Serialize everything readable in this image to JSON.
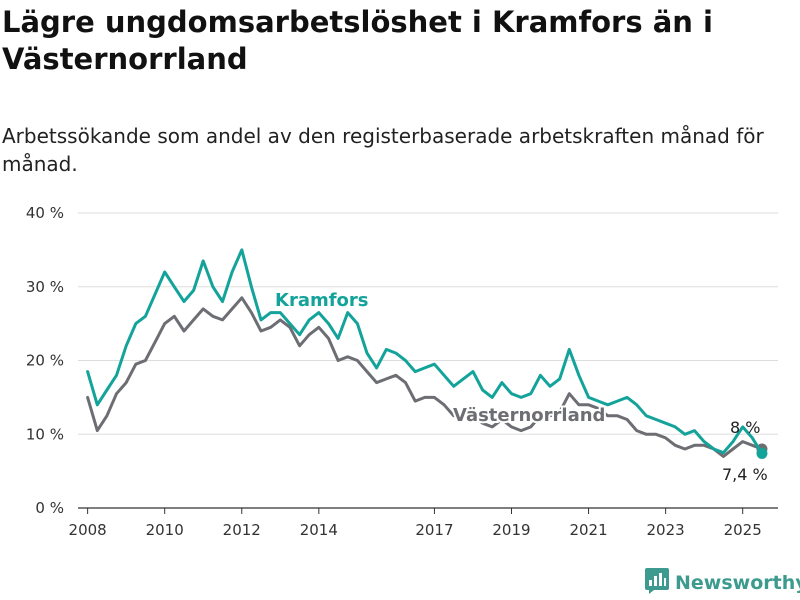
{
  "title": "Lägre ungdomsarbetslöshet i Kramfors än i Västernorrland",
  "subtitle": "Arbetssökande som andel av den registerbaserade arbetskraften månad för månad.",
  "brand": {
    "name": "Newsworthy",
    "icon": "newsworthy-logo-icon"
  },
  "colors": {
    "kramfors": "#13a39a",
    "vasternorrland": "#6d6e73",
    "grid": "#dddddd",
    "axis": "#333333"
  },
  "chart_data": {
    "type": "line",
    "title": "Lägre ungdomsarbetslöshet i Kramfors än i Västernorrland",
    "subtitle": "Arbetssökande som andel av den registerbaserade arbetskraften månad för månad.",
    "xlabel": "",
    "ylabel": "",
    "xlim": [
      "2007-10",
      "2025-12"
    ],
    "ylim": [
      0,
      40
    ],
    "yticks": [
      0,
      10,
      20,
      30,
      40
    ],
    "ytick_labels": [
      "0 %",
      "10 %",
      "20 %",
      "30 %",
      "40 %"
    ],
    "xticks": [
      "2008-01",
      "2010-01",
      "2012-01",
      "2014-01",
      "2017-01",
      "2019-01",
      "2021-01",
      "2023-01",
      "2025-01"
    ],
    "xtick_labels": [
      "2008",
      "2010",
      "2012",
      "2014",
      "2017",
      "2019",
      "2021",
      "2023",
      "2025"
    ],
    "grid": true,
    "legend": "direct labels",
    "series": [
      {
        "name": "Kramfors",
        "color": "#13a39a",
        "end_label": "7,4 %",
        "points": [
          [
            "2008-01",
            18.5
          ],
          [
            "2008-04",
            14.0
          ],
          [
            "2008-07",
            16.0
          ],
          [
            "2008-10",
            18.0
          ],
          [
            "2009-01",
            22.0
          ],
          [
            "2009-04",
            25.0
          ],
          [
            "2009-07",
            26.0
          ],
          [
            "2009-10",
            29.0
          ],
          [
            "2010-01",
            32.0
          ],
          [
            "2010-04",
            30.0
          ],
          [
            "2010-07",
            28.0
          ],
          [
            "2010-10",
            29.5
          ],
          [
            "2011-01",
            33.5
          ],
          [
            "2011-04",
            30.0
          ],
          [
            "2011-07",
            28.0
          ],
          [
            "2011-10",
            32.0
          ],
          [
            "2012-01",
            35.0
          ],
          [
            "2012-04",
            30.0
          ],
          [
            "2012-07",
            25.5
          ],
          [
            "2012-10",
            26.5
          ],
          [
            "2013-01",
            26.5
          ],
          [
            "2013-04",
            25.0
          ],
          [
            "2013-07",
            23.5
          ],
          [
            "2013-10",
            25.5
          ],
          [
            "2014-01",
            26.5
          ],
          [
            "2014-04",
            25.0
          ],
          [
            "2014-07",
            23.0
          ],
          [
            "2014-10",
            26.5
          ],
          [
            "2015-01",
            25.0
          ],
          [
            "2015-04",
            21.0
          ],
          [
            "2015-07",
            19.0
          ],
          [
            "2015-10",
            21.5
          ],
          [
            "2016-01",
            21.0
          ],
          [
            "2016-04",
            20.0
          ],
          [
            "2016-07",
            18.5
          ],
          [
            "2016-10",
            19.0
          ],
          [
            "2017-01",
            19.5
          ],
          [
            "2017-04",
            18.0
          ],
          [
            "2017-07",
            16.5
          ],
          [
            "2017-10",
            17.5
          ],
          [
            "2018-01",
            18.5
          ],
          [
            "2018-04",
            16.0
          ],
          [
            "2018-07",
            15.0
          ],
          [
            "2018-10",
            17.0
          ],
          [
            "2019-01",
            15.5
          ],
          [
            "2019-04",
            15.0
          ],
          [
            "2019-07",
            15.5
          ],
          [
            "2019-10",
            18.0
          ],
          [
            "2020-01",
            16.5
          ],
          [
            "2020-04",
            17.5
          ],
          [
            "2020-07",
            21.5
          ],
          [
            "2020-10",
            18.0
          ],
          [
            "2021-01",
            15.0
          ],
          [
            "2021-04",
            14.5
          ],
          [
            "2021-07",
            14.0
          ],
          [
            "2021-10",
            14.5
          ],
          [
            "2022-01",
            15.0
          ],
          [
            "2022-04",
            14.0
          ],
          [
            "2022-07",
            12.5
          ],
          [
            "2022-10",
            12.0
          ],
          [
            "2023-01",
            11.5
          ],
          [
            "2023-04",
            11.0
          ],
          [
            "2023-07",
            10.0
          ],
          [
            "2023-10",
            10.5
          ],
          [
            "2024-01",
            9.0
          ],
          [
            "2024-04",
            8.0
          ],
          [
            "2024-07",
            7.5
          ],
          [
            "2024-10",
            9.0
          ],
          [
            "2025-01",
            11.0
          ],
          [
            "2025-04",
            9.5
          ],
          [
            "2025-07",
            7.4
          ]
        ]
      },
      {
        "name": "Västernorrland",
        "color": "#6d6e73",
        "end_label": "8 %",
        "points": [
          [
            "2008-01",
            15.0
          ],
          [
            "2008-04",
            10.5
          ],
          [
            "2008-07",
            12.5
          ],
          [
            "2008-10",
            15.5
          ],
          [
            "2009-01",
            17.0
          ],
          [
            "2009-04",
            19.5
          ],
          [
            "2009-07",
            20.0
          ],
          [
            "2009-10",
            22.5
          ],
          [
            "2010-01",
            25.0
          ],
          [
            "2010-04",
            26.0
          ],
          [
            "2010-07",
            24.0
          ],
          [
            "2010-10",
            25.5
          ],
          [
            "2011-01",
            27.0
          ],
          [
            "2011-04",
            26.0
          ],
          [
            "2011-07",
            25.5
          ],
          [
            "2011-10",
            27.0
          ],
          [
            "2012-01",
            28.5
          ],
          [
            "2012-04",
            26.5
          ],
          [
            "2012-07",
            24.0
          ],
          [
            "2012-10",
            24.5
          ],
          [
            "2013-01",
            25.5
          ],
          [
            "2013-04",
            24.5
          ],
          [
            "2013-07",
            22.0
          ],
          [
            "2013-10",
            23.5
          ],
          [
            "2014-01",
            24.5
          ],
          [
            "2014-04",
            23.0
          ],
          [
            "2014-07",
            20.0
          ],
          [
            "2014-10",
            20.5
          ],
          [
            "2015-01",
            20.0
          ],
          [
            "2015-04",
            18.5
          ],
          [
            "2015-07",
            17.0
          ],
          [
            "2015-10",
            17.5
          ],
          [
            "2016-01",
            18.0
          ],
          [
            "2016-04",
            17.0
          ],
          [
            "2016-07",
            14.5
          ],
          [
            "2016-10",
            15.0
          ],
          [
            "2017-01",
            15.0
          ],
          [
            "2017-04",
            14.0
          ],
          [
            "2017-07",
            12.5
          ],
          [
            "2017-10",
            12.5
          ],
          [
            "2018-01",
            12.5
          ],
          [
            "2018-04",
            11.5
          ],
          [
            "2018-07",
            11.0
          ],
          [
            "2018-10",
            12.0
          ],
          [
            "2019-01",
            11.0
          ],
          [
            "2019-04",
            10.5
          ],
          [
            "2019-07",
            11.0
          ],
          [
            "2019-10",
            12.5
          ],
          [
            "2020-01",
            12.5
          ],
          [
            "2020-04",
            13.0
          ],
          [
            "2020-07",
            15.5
          ],
          [
            "2020-10",
            14.0
          ],
          [
            "2021-01",
            14.0
          ],
          [
            "2021-04",
            13.5
          ],
          [
            "2021-07",
            12.5
          ],
          [
            "2021-10",
            12.5
          ],
          [
            "2022-01",
            12.0
          ],
          [
            "2022-04",
            10.5
          ],
          [
            "2022-07",
            10.0
          ],
          [
            "2022-10",
            10.0
          ],
          [
            "2023-01",
            9.5
          ],
          [
            "2023-04",
            8.5
          ],
          [
            "2023-07",
            8.0
          ],
          [
            "2023-10",
            8.5
          ],
          [
            "2024-01",
            8.5
          ],
          [
            "2024-04",
            8.0
          ],
          [
            "2024-07",
            7.0
          ],
          [
            "2024-10",
            8.0
          ],
          [
            "2025-01",
            9.0
          ],
          [
            "2025-04",
            8.5
          ],
          [
            "2025-07",
            8.0
          ]
        ]
      }
    ]
  }
}
